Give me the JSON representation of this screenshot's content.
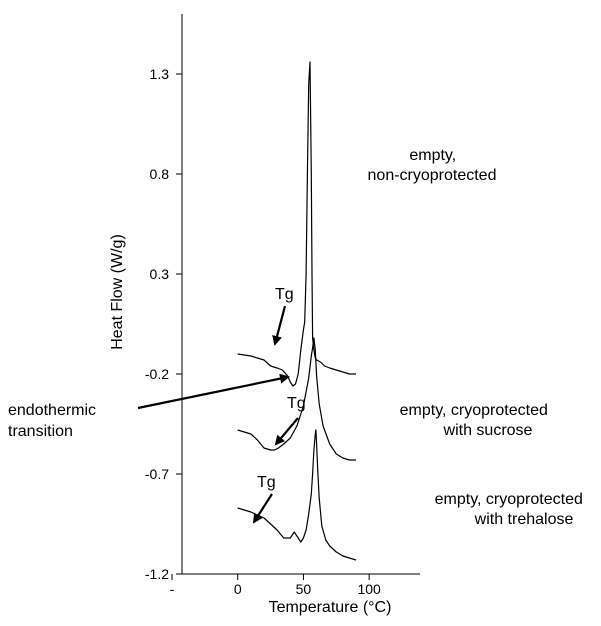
{
  "chart_data": {
    "type": "line",
    "title": "",
    "xlabel": "Temperature (°C)",
    "ylabel": "Heat Flow (W/g)",
    "xlim": [
      -50,
      125
    ],
    "ylim": [
      -1.2,
      1.6
    ],
    "x_ticks": [
      {
        "value": -50,
        "label": "-"
      },
      {
        "value": 0,
        "label": "0"
      },
      {
        "value": 50,
        "label": "50"
      },
      {
        "value": 100,
        "label": "100"
      }
    ],
    "y_ticks": [
      {
        "value": 1.3,
        "label": "1.3"
      },
      {
        "value": 0.8,
        "label": "0.8"
      },
      {
        "value": 0.3,
        "label": "0.3"
      },
      {
        "value": -0.2,
        "label": "-0.2"
      },
      {
        "value": -0.7,
        "label": "-0.7"
      },
      {
        "value": -1.2,
        "label": "-1.2"
      }
    ],
    "grid": false,
    "series": [
      {
        "x": [
          0,
          10,
          20,
          25,
          30,
          34,
          38,
          40,
          42,
          44,
          46,
          48,
          50,
          51,
          52,
          53,
          54,
          55,
          56,
          56.5,
          57,
          58,
          59,
          60,
          63,
          66,
          70,
          75,
          80,
          85,
          90
        ],
        "y": [
          -0.1,
          -0.11,
          -0.13,
          -0.16,
          -0.17,
          -0.18,
          -0.21,
          -0.24,
          -0.26,
          -0.25,
          -0.2,
          -0.08,
          0.02,
          0.06,
          0.3,
          0.8,
          1.25,
          1.36,
          0.8,
          0.3,
          -0.02,
          -0.08,
          -0.12,
          -0.13,
          -0.14,
          -0.16,
          -0.17,
          -0.18,
          -0.19,
          -0.2,
          -0.2
        ]
      },
      {
        "x": [
          0,
          10,
          15,
          20,
          25,
          28,
          31,
          35,
          40,
          45,
          50,
          54,
          56,
          57,
          58,
          59,
          60,
          62,
          65,
          70,
          75,
          80,
          85,
          90
        ],
        "y": [
          -0.48,
          -0.5,
          -0.53,
          -0.57,
          -0.58,
          -0.58,
          -0.57,
          -0.55,
          -0.52,
          -0.46,
          -0.36,
          -0.22,
          -0.11,
          -0.07,
          -0.02,
          -0.08,
          -0.21,
          -0.35,
          -0.46,
          -0.55,
          -0.6,
          -0.62,
          -0.63,
          -0.63
        ]
      },
      {
        "x": [
          0,
          10,
          20,
          25,
          30,
          35,
          40,
          43,
          46,
          48,
          50,
          52,
          54,
          56,
          57,
          58,
          59,
          59.5,
          60,
          61,
          62,
          64,
          67,
          70,
          75,
          80,
          85,
          90
        ],
        "y": [
          -0.87,
          -0.89,
          -0.92,
          -0.95,
          -0.98,
          -1.02,
          -1.02,
          -0.99,
          -1.02,
          -1.04,
          -1.02,
          -0.98,
          -0.9,
          -0.8,
          -0.7,
          -0.58,
          -0.5,
          -0.48,
          -0.55,
          -0.7,
          -0.82,
          -0.96,
          -1.03,
          -1.06,
          -1.09,
          -1.11,
          -1.12,
          -1.13
        ]
      }
    ],
    "annotations": {
      "curve1_label": [
        "empty,",
        "non-cryoprotected"
      ],
      "curve2_label": [
        "empty, cryoprotected",
        "with sucrose"
      ],
      "curve3_label": [
        "empty, cryoprotected",
        "with trehalose"
      ],
      "tg_label": "Tg",
      "endothermic_label": [
        "endothermic",
        "transition"
      ]
    }
  }
}
